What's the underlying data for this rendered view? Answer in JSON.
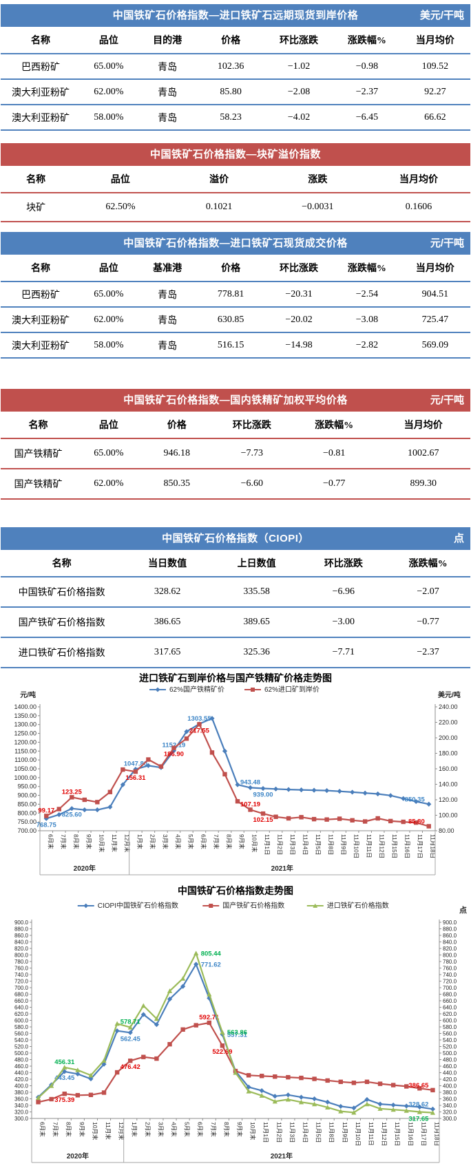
{
  "colors": {
    "blue_theme": "#4f81bd",
    "red_theme": "#c0504d",
    "series_blue": "#4a7ebb",
    "series_red": "#c0504d",
    "series_green": "#9bbb59",
    "label_blue": "#3d85c6",
    "label_red": "#e00000",
    "label_green": "#00b050"
  },
  "tables": [
    {
      "id": "t1",
      "theme": "blue",
      "title": "中国铁矿石价格指数—进口铁矿石远期现货到岸价格",
      "unit": "美元/干吨",
      "columns": [
        "名称",
        "品位",
        "目的港",
        "价格",
        "环比涨跌",
        "涨跌幅%",
        "当月均价"
      ],
      "rows": [
        [
          "巴西粉矿",
          "65.00%",
          "青岛",
          "102.36",
          "−1.02",
          "−0.98",
          "109.52"
        ],
        [
          "澳大利亚粉矿",
          "62.00%",
          "青岛",
          "85.80",
          "−2.08",
          "−2.37",
          "92.27"
        ],
        [
          "澳大利亚粉矿",
          "58.00%",
          "青岛",
          "58.23",
          "−4.02",
          "−6.45",
          "66.62"
        ]
      ]
    },
    {
      "id": "t2",
      "theme": "red",
      "title": "中国铁矿石价格指数—块矿溢价指数",
      "unit": "",
      "columns": [
        "名称",
        "品位",
        "溢价",
        "涨跌",
        "当月均价"
      ],
      "rows": [
        [
          "块矿",
          "62.50%",
          "0.1021",
          "−0.0031",
          "0.1606"
        ]
      ]
    },
    {
      "id": "t3",
      "theme": "blue",
      "title": "中国铁矿石价格指数—进口铁矿石现货成交价格",
      "unit": "元/干吨",
      "columns": [
        "名称",
        "品位",
        "基准港",
        "价格",
        "环比涨跌",
        "涨跌幅%",
        "当月均价"
      ],
      "rows": [
        [
          "巴西粉矿",
          "65.00%",
          "青岛",
          "778.81",
          "−20.31",
          "−2.54",
          "904.51"
        ],
        [
          "澳大利亚粉矿",
          "62.00%",
          "青岛",
          "630.85",
          "−20.02",
          "−3.08",
          "725.47"
        ],
        [
          "澳大利亚粉矿",
          "58.00%",
          "青岛",
          "516.15",
          "−14.98",
          "−2.82",
          "569.09"
        ]
      ]
    },
    {
      "id": "t4",
      "theme": "red",
      "title": "中国铁矿石价格指数—国内铁精矿加权平均价格",
      "unit": "元/干吨",
      "columns": [
        "名称",
        "品位",
        "价格",
        "环比涨跌",
        "涨跌幅%",
        "当月均价"
      ],
      "rows": [
        [
          "国产铁精矿",
          "65.00%",
          "946.18",
          "−7.73",
          "−0.81",
          "1002.67"
        ],
        [
          "国产铁精矿",
          "62.00%",
          "850.35",
          "−6.60",
          "−0.77",
          "899.30"
        ]
      ]
    },
    {
      "id": "t5",
      "theme": "blue",
      "title": "中国铁矿石价格指数（CIOPI）",
      "unit": "点",
      "columns": [
        "名称",
        "当日数值",
        "上日数值",
        "环比涨跌",
        "涨跌幅%"
      ],
      "rows": [
        [
          "中国铁矿石价格指数",
          "328.62",
          "335.58",
          "−6.96",
          "−2.07"
        ],
        [
          "国产铁矿石价格指数",
          "386.65",
          "389.65",
          "−3.00",
          "−0.77"
        ],
        [
          "进口铁矿石价格指数",
          "317.65",
          "325.36",
          "−7.71",
          "−2.37"
        ]
      ]
    }
  ],
  "chart_data": [
    {
      "type": "line",
      "title": "进口铁矿石到岸价格与国产铁精矿价格走势图",
      "left_axis": {
        "unit": "元/吨",
        "min": 700,
        "max": 1400,
        "step": 50,
        "decimals": 2
      },
      "right_axis": {
        "unit": "美元/吨",
        "min": 80,
        "max": 240,
        "step": 20,
        "decimals": 2
      },
      "grid": false,
      "legend_position": "top",
      "categories": [
        "6月末",
        "7月末",
        "8月末",
        "9月末",
        "10月末",
        "11月末",
        "12月末",
        "1月末",
        "2月末",
        "3月末",
        "4月末",
        "5月末",
        "6月末",
        "7月末",
        "8月末",
        "9月末",
        "10月末",
        "11月1日",
        "11月2日",
        "11月3日",
        "11月4日",
        "11月5日",
        "11月8日",
        "11月9日",
        "11月10日",
        "11月11日",
        "11月12日",
        "11月15日",
        "11月16日",
        "11月17日",
        "11月18日"
      ],
      "year_groups": [
        {
          "label": "2020年",
          "count": 7
        },
        {
          "label": "2021年",
          "count": 24
        }
      ],
      "series": [
        {
          "name": "62%国产铁精矿价",
          "axis": "left",
          "marker": "diamond",
          "color": "#4a7ebb",
          "label_color": "#3d85c6",
          "values": [
            768.75,
            791,
            825.6,
            818,
            818,
            834,
            960,
            1047.8,
            1068,
            1057,
            1152.19,
            1260,
            1303.55,
            1335,
            1150,
            960,
            943.48,
            939.0,
            936,
            933,
            931,
            929,
            927,
            923,
            918,
            913,
            908,
            899,
            882,
            865,
            850.35
          ],
          "labels": [
            {
              "i": 0,
              "v": "768.75",
              "pos": "below"
            },
            {
              "i": 2,
              "v": "825.60",
              "pos": "below"
            },
            {
              "i": 7,
              "v": "1047.80",
              "pos": "above"
            },
            {
              "i": 10,
              "v": "1152.19",
              "pos": "above"
            },
            {
              "i": 12,
              "v": "1303.55",
              "pos": "above"
            },
            {
              "i": 16,
              "v": "943.48",
              "pos": "above"
            },
            {
              "i": 17,
              "v": "939.00",
              "pos": "below"
            },
            {
              "i": 30,
              "v": "850.35",
              "pos": "left"
            }
          ]
        },
        {
          "name": "62%进口矿到岸价",
          "axis": "right",
          "marker": "square",
          "color": "#c0504d",
          "label_color": "#e00000",
          "values": [
            99.17,
            108,
            123.25,
            120,
            117,
            130,
            159,
            156.31,
            172,
            163,
            186.9,
            199,
            217.55,
            181,
            153,
            118,
            107.19,
            102.15,
            98,
            96,
            97.5,
            95,
            94.5,
            95.5,
            93.5,
            92,
            96,
            92.5,
            91.5,
            90.5,
            85.8
          ],
          "labels": [
            {
              "i": 0,
              "v": "99.17",
              "pos": "above"
            },
            {
              "i": 2,
              "v": "123.25",
              "pos": "above"
            },
            {
              "i": 7,
              "v": "156.31",
              "pos": "below"
            },
            {
              "i": 10,
              "v": "186.90",
              "pos": "below"
            },
            {
              "i": 12,
              "v": "217.55",
              "pos": "below"
            },
            {
              "i": 16,
              "v": "107.19",
              "pos": "above"
            },
            {
              "i": 17,
              "v": "102.15",
              "pos": "below"
            },
            {
              "i": 30,
              "v": "85.80",
              "pos": "left"
            }
          ]
        }
      ]
    },
    {
      "type": "line",
      "title": "中国铁矿石价格指数走势图",
      "unit": "点",
      "left_axis": {
        "min": 300,
        "max": 900,
        "step": 20,
        "decimals": 1
      },
      "right_axis": {
        "min": 300,
        "max": 900,
        "step": 20,
        "decimals": 1
      },
      "grid": false,
      "legend_position": "top",
      "categories": [
        "6月末",
        "7月末",
        "8月末",
        "9月末",
        "10月末",
        "11月末",
        "12月末",
        "1月末",
        "2月末",
        "3月末",
        "4月末",
        "5月末",
        "6月末",
        "7月末",
        "8月末",
        "9月末",
        "10月末",
        "11月1日",
        "11月2日",
        "11月3日",
        "11月4日",
        "11月5日",
        "11月8日",
        "11月9日",
        "11月10日",
        "11月11日",
        "11月12日",
        "11月15日",
        "11月16日",
        "11月17日",
        "11月18日"
      ],
      "year_groups": [
        {
          "label": "2020年",
          "count": 7
        },
        {
          "label": "2021年",
          "count": 24
        }
      ],
      "series": [
        {
          "name": "CIOPI中国铁矿石价格指数",
          "axis": "left",
          "marker": "diamond",
          "color": "#4a7ebb",
          "label_color": "#3d85c6",
          "values": [
            365,
            403,
            443.45,
            436,
            421,
            466,
            568,
            562.45,
            618,
            587,
            665,
            704,
            771.62,
            668,
            557.31,
            445,
            396,
            385,
            368,
            372,
            365,
            360,
            350,
            337,
            332,
            358,
            344,
            341,
            338,
            335,
            328.62
          ],
          "labels": [
            {
              "i": 2,
              "v": "443.45",
              "pos": "below"
            },
            {
              "i": 7,
              "v": "562.45",
              "pos": "below"
            },
            {
              "i": 12,
              "v": "771.62",
              "pos": "right"
            },
            {
              "i": 14,
              "v": "557.31",
              "pos": "right"
            },
            {
              "i": 30,
              "v": "328.62",
              "pos": "left"
            }
          ]
        },
        {
          "name": "国产铁矿石价格指数",
          "axis": "left",
          "marker": "square",
          "color": "#c0504d",
          "label_color": "#e00000",
          "values": [
            350,
            359,
            375.39,
            371,
            372,
            379,
            441,
            476.42,
            488,
            483,
            527,
            572,
            585,
            592.71,
            522.69,
            445,
            432,
            430,
            428,
            426,
            424,
            421,
            416,
            412,
            409,
            412,
            406,
            402,
            398,
            392,
            386.65
          ],
          "labels": [
            {
              "i": 2,
              "v": "375.39",
              "pos": "below"
            },
            {
              "i": 7,
              "v": "476.42",
              "pos": "below"
            },
            {
              "i": 13,
              "v": "592.71",
              "pos": "above"
            },
            {
              "i": 14,
              "v": "522.69",
              "pos": "below"
            },
            {
              "i": 30,
              "v": "386.65",
              "pos": "left"
            }
          ]
        },
        {
          "name": "进口铁矿石价格指数",
          "axis": "left",
          "marker": "triangle",
          "color": "#9bbb59",
          "label_color": "#00b050",
          "values": [
            363,
            400,
            456.31,
            448,
            432,
            477,
            590,
            578.71,
            645,
            605,
            690,
            728,
            805.44,
            680,
            563.86,
            440,
            383,
            370,
            352,
            358,
            350,
            344,
            334,
            322,
            318,
            344,
            330,
            327,
            324,
            320,
            317.65
          ],
          "labels": [
            {
              "i": 2,
              "v": "456.31",
              "pos": "above"
            },
            {
              "i": 7,
              "v": "578.71",
              "pos": "above"
            },
            {
              "i": 12,
              "v": "805.44",
              "pos": "right"
            },
            {
              "i": 14,
              "v": "563.86",
              "pos": "right"
            },
            {
              "i": 30,
              "v": "317.65",
              "pos": "left-below"
            }
          ]
        }
      ]
    }
  ]
}
